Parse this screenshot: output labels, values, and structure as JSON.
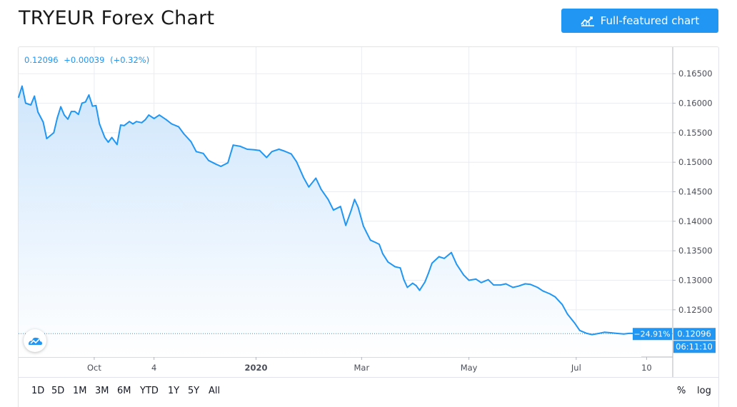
{
  "header": {
    "title": "TRYEUR Forex Chart",
    "full_chart_label": "Full-featured chart",
    "full_chart_icon": "chart-line-icon"
  },
  "legend": {
    "price": "0.12096",
    "change": "+0.00039",
    "change_pct": "(+0.32%)"
  },
  "colors": {
    "accent": "#2196f3",
    "line": "#2196f3",
    "area_top": "#cfe6fc",
    "area_bottom": "#ffffff",
    "grid": "#e9ecf2"
  },
  "range_buttons": [
    "1D",
    "5D",
    "1M",
    "3M",
    "6M",
    "YTD",
    "1Y",
    "5Y",
    "All"
  ],
  "scale_options": [
    "%",
    "log"
  ],
  "chart_data": {
    "type": "area",
    "title": "TRYEUR Forex Chart",
    "xlabel": "",
    "ylabel": "",
    "x_tick_labels": [
      "Oct",
      "4",
      "2020",
      "Mar",
      "May",
      "Jul",
      "10"
    ],
    "y_tick_labels": [
      "0.16500",
      "0.16000",
      "0.15500",
      "0.15000",
      "0.14500",
      "0.14000",
      "0.13500",
      "0.13000",
      "0.12500"
    ],
    "ylim": [
      0.117,
      0.1695
    ],
    "grid": true,
    "last_value_label": "0.12096",
    "last_change_label": "−24.91%",
    "countdown_label": "06:11:10",
    "series": [
      {
        "x": [
          "2019-08-19",
          "2019-08-21",
          "2019-08-23",
          "2019-08-26",
          "2019-08-28",
          "2019-08-30",
          "2019-09-02",
          "2019-09-04",
          "2019-09-06",
          "2019-09-08",
          "2019-09-10",
          "2019-09-12",
          "2019-09-14",
          "2019-09-16",
          "2019-09-18",
          "2019-09-20",
          "2019-09-22",
          "2019-09-24",
          "2019-09-26",
          "2019-09-28",
          "2019-09-30",
          "2019-10-02",
          "2019-10-04",
          "2019-10-07",
          "2019-10-09",
          "2019-10-11",
          "2019-10-14",
          "2019-10-16",
          "2019-10-18",
          "2019-10-21",
          "2019-10-23",
          "2019-10-25",
          "2019-10-28",
          "2019-10-30",
          "2019-11-01",
          "2019-11-04",
          "2019-11-07",
          "2019-11-11",
          "2019-11-14",
          "2019-11-18",
          "2019-11-21",
          "2019-11-25",
          "2019-11-28",
          "2019-12-02",
          "2019-12-05",
          "2019-12-09",
          "2019-12-12",
          "2019-12-16",
          "2019-12-19",
          "2019-12-23",
          "2019-12-27",
          "2019-12-31",
          "2020-01-03",
          "2020-01-07",
          "2020-01-10",
          "2020-01-14",
          "2020-01-17",
          "2020-01-21",
          "2020-01-24",
          "2020-01-28",
          "2020-01-31",
          "2020-02-04",
          "2020-02-07",
          "2020-02-11",
          "2020-02-14",
          "2020-02-18",
          "2020-02-21",
          "2020-02-24",
          "2020-02-26",
          "2020-02-28",
          "2020-03-02",
          "2020-03-04",
          "2020-03-06",
          "2020-03-09",
          "2020-03-11",
          "2020-03-13",
          "2020-03-16",
          "2020-03-18",
          "2020-03-20",
          "2020-03-23",
          "2020-03-25",
          "2020-03-27",
          "2020-03-30",
          "2020-04-01",
          "2020-04-03",
          "2020-04-06",
          "2020-04-08",
          "2020-04-10",
          "2020-04-14",
          "2020-04-17",
          "2020-04-21",
          "2020-04-24",
          "2020-04-28",
          "2020-05-01",
          "2020-05-05",
          "2020-05-08",
          "2020-05-12",
          "2020-05-15",
          "2020-05-19",
          "2020-05-22",
          "2020-05-26",
          "2020-05-29",
          "2020-06-02",
          "2020-06-05",
          "2020-06-09",
          "2020-06-12",
          "2020-06-16",
          "2020-06-19",
          "2020-06-23",
          "2020-06-26",
          "2020-06-30",
          "2020-07-03",
          "2020-07-07",
          "2020-07-10",
          "2020-07-14",
          "2020-07-17",
          "2020-07-21",
          "2020-07-24",
          "2020-07-28",
          "2020-07-31",
          "2020-08-03",
          "2020-08-05",
          "2020-08-07"
        ],
        "values": [
          0.161,
          0.1629,
          0.16,
          0.1597,
          0.1612,
          0.1585,
          0.1568,
          0.154,
          0.1545,
          0.155,
          0.1575,
          0.1594,
          0.158,
          0.1573,
          0.1586,
          0.1586,
          0.1581,
          0.16,
          0.1602,
          0.1614,
          0.1595,
          0.1596,
          0.1565,
          0.1542,
          0.1534,
          0.1542,
          0.153,
          0.1563,
          0.1562,
          0.1569,
          0.1565,
          0.1569,
          0.1567,
          0.1572,
          0.158,
          0.1574,
          0.158,
          0.1572,
          0.1565,
          0.156,
          0.1548,
          0.1535,
          0.1518,
          0.1515,
          0.1503,
          0.1497,
          0.1493,
          0.1499,
          0.1529,
          0.1527,
          0.1522,
          0.1521,
          0.152,
          0.1508,
          0.1518,
          0.1522,
          0.1519,
          0.1514,
          0.1501,
          0.1474,
          0.1458,
          0.1473,
          0.1454,
          0.1437,
          0.1419,
          0.1425,
          0.1393,
          0.1418,
          0.1437,
          0.1424,
          0.1392,
          0.138,
          0.1368,
          0.1364,
          0.1361,
          0.1345,
          0.1331,
          0.1327,
          0.1323,
          0.1321,
          0.1301,
          0.1288,
          0.1295,
          0.1291,
          0.1283,
          0.1297,
          0.1312,
          0.1329,
          0.134,
          0.1337,
          0.1347,
          0.1327,
          0.1309,
          0.13,
          0.1302,
          0.1296,
          0.1301,
          0.1292,
          0.1292,
          0.1294,
          0.1288,
          0.129,
          0.1294,
          0.1293,
          0.1288,
          0.1282,
          0.1277,
          0.1272,
          0.1259,
          0.1243,
          0.1228,
          0.1215,
          0.121,
          0.1208,
          0.121,
          0.1212,
          0.1211,
          0.121,
          0.1209,
          0.121,
          0.121,
          0.1209,
          0.121
        ]
      }
    ]
  }
}
